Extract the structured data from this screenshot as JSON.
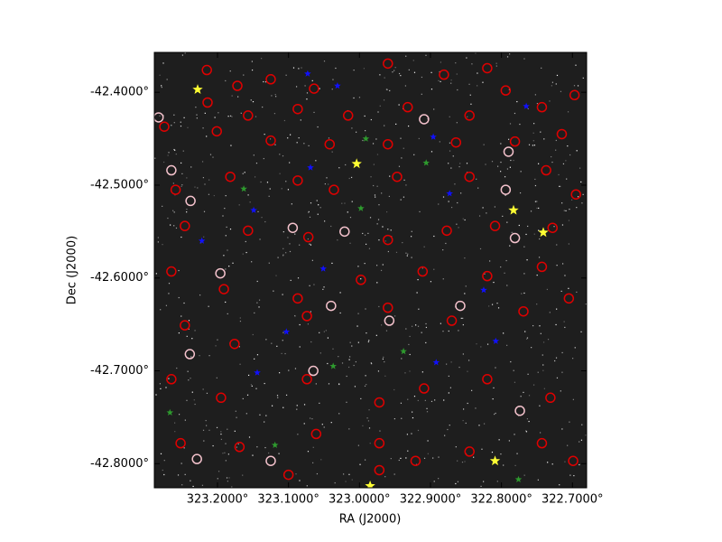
{
  "chart_data": {
    "type": "scatter",
    "xlabel": "RA (J2000)",
    "ylabel": "Dec (J2000)",
    "xlim": [
      323.289,
      322.68
    ],
    "ylim": [
      -42.826,
      -42.357
    ],
    "xticks": [
      {
        "value": 323.2,
        "label": "323.2000°"
      },
      {
        "value": 323.1,
        "label": "323.1000°"
      },
      {
        "value": 323.0,
        "label": "323.0000°"
      },
      {
        "value": 322.9,
        "label": "322.9000°"
      },
      {
        "value": 322.8,
        "label": "322.8000°"
      },
      {
        "value": 322.7,
        "label": "322.7000°"
      }
    ],
    "yticks": [
      {
        "value": -42.4,
        "label": "-42.4000°"
      },
      {
        "value": -42.5,
        "label": "-42.5000°"
      },
      {
        "value": -42.6,
        "label": "-42.6000°"
      },
      {
        "value": -42.7,
        "label": "-42.7000°"
      },
      {
        "value": -42.8,
        "label": "-42.8000°"
      }
    ],
    "series": [
      {
        "color": "#e00000",
        "marker": "circle",
        "x": [
          323.215,
          323.172,
          323.125,
          323.064,
          322.96,
          322.881,
          322.82,
          322.794,
          323.214,
          323.157,
          323.087,
          323.016,
          322.932,
          322.845,
          322.743,
          322.697,
          323.275,
          323.201,
          323.125,
          323.042,
          322.96,
          322.864,
          322.781,
          322.715,
          323.259,
          323.182,
          323.087,
          323.036,
          322.947,
          322.845,
          322.737,
          322.695,
          323.246,
          323.157,
          323.072,
          322.96,
          322.877,
          322.809,
          322.728,
          323.265,
          323.191,
          323.087,
          322.998,
          322.911,
          322.82,
          322.743,
          323.246,
          323.176,
          323.074,
          322.96,
          322.87,
          322.769,
          322.705,
          323.265,
          323.195,
          323.074,
          322.972,
          322.909,
          322.82,
          322.731,
          323.252,
          323.169,
          323.061,
          322.972,
          322.921,
          322.845,
          322.743,
          322.699,
          323.1,
          322.972
        ],
        "values": [
          -42.376,
          -42.393,
          -42.386,
          -42.396,
          -42.369,
          -42.381,
          -42.374,
          -42.398,
          -42.411,
          -42.425,
          -42.418,
          -42.425,
          -42.416,
          -42.425,
          -42.416,
          -42.403,
          -42.437,
          -42.442,
          -42.452,
          -42.456,
          -42.456,
          -42.454,
          -42.453,
          -42.445,
          -42.505,
          -42.491,
          -42.495,
          -42.505,
          -42.491,
          -42.491,
          -42.484,
          -42.51,
          -42.544,
          -42.549,
          -42.556,
          -42.559,
          -42.549,
          -42.544,
          -42.546,
          -42.593,
          -42.612,
          -42.622,
          -42.602,
          -42.593,
          -42.598,
          -42.588,
          -42.651,
          -42.671,
          -42.641,
          -42.632,
          -42.646,
          -42.636,
          -42.622,
          -42.709,
          -42.729,
          -42.709,
          -42.734,
          -42.719,
          -42.709,
          -42.729,
          -42.778,
          -42.782,
          -42.768,
          -42.778,
          -42.797,
          -42.787,
          -42.778,
          -42.797,
          -42.812,
          -42.807
        ]
      },
      {
        "color": "#f4c2cc",
        "marker": "circle",
        "x": [
          323.283,
          323.265,
          323.238,
          323.094,
          323.021,
          323.196,
          323.04,
          322.958,
          322.909,
          322.794,
          322.858,
          323.239,
          323.065,
          323.125,
          323.229,
          322.774,
          322.79,
          322.781
        ],
        "values": [
          -42.427,
          -42.484,
          -42.517,
          -42.546,
          -42.55,
          -42.595,
          -42.63,
          -42.646,
          -42.429,
          -42.505,
          -42.63,
          -42.682,
          -42.7,
          -42.797,
          -42.795,
          -42.743,
          -42.464,
          -42.557
        ]
      },
      {
        "color": "#1010ff",
        "marker": "star",
        "x": [
          323.073,
          323.031,
          322.765,
          322.896,
          323.069,
          322.873,
          323.149,
          323.222,
          323.051,
          322.825,
          323.103,
          322.808,
          323.144,
          322.892
        ],
        "values": [
          -42.38,
          -42.393,
          -42.415,
          -42.448,
          -42.481,
          -42.509,
          -42.527,
          -42.56,
          -42.59,
          -42.613,
          -42.658,
          -42.668,
          -42.702,
          -42.691
        ]
      },
      {
        "color": "#2e9a2e",
        "marker": "star",
        "x": [
          322.991,
          322.906,
          323.163,
          322.998,
          322.938,
          323.037,
          323.267,
          323.119,
          322.776
        ],
        "values": [
          -42.45,
          -42.476,
          -42.504,
          -42.525,
          -42.679,
          -42.695,
          -42.745,
          -42.78,
          -42.817
        ]
      },
      {
        "color": "#ffff33",
        "marker": "star",
        "x": [
          323.228,
          323.004,
          322.783,
          322.741,
          322.809,
          322.985
        ],
        "values": [
          -42.397,
          -42.477,
          -42.527,
          -42.551,
          -42.797,
          -42.824
        ]
      }
    ]
  }
}
